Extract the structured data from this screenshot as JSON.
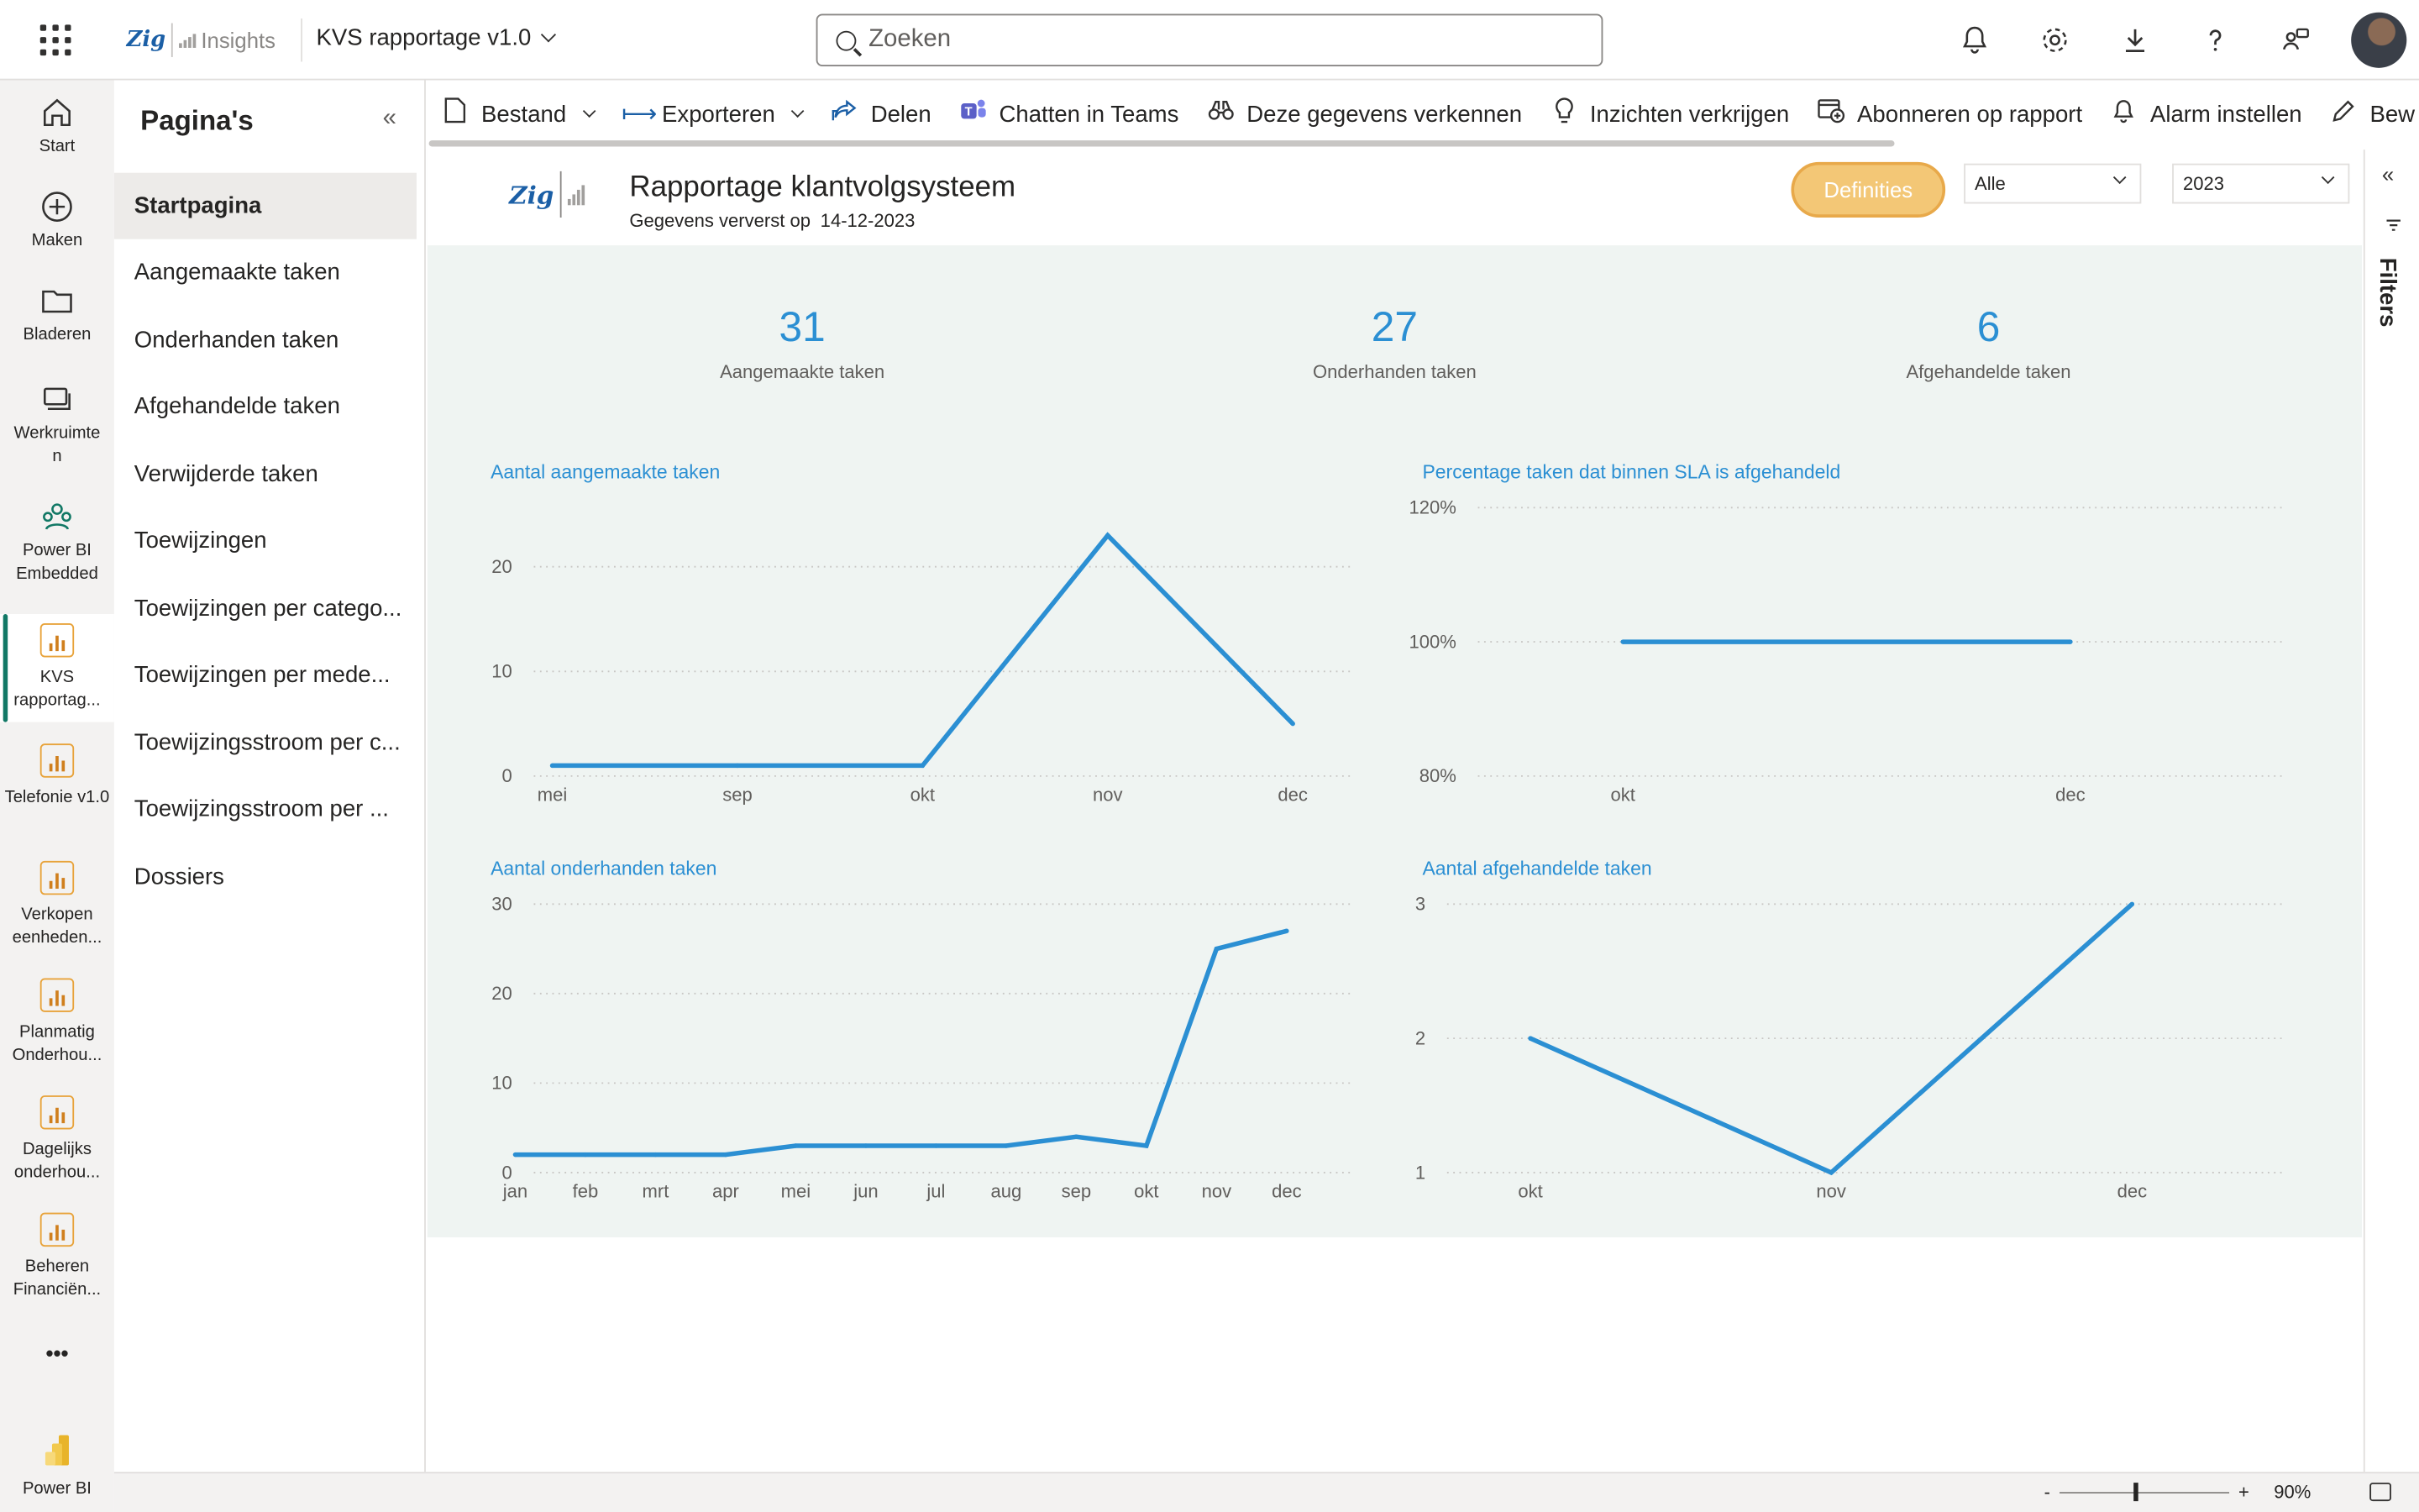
{
  "topbar": {
    "brand_insights": "Insights",
    "report_name": "KVS rapportage v1.0",
    "search_placeholder": "Zoeken"
  },
  "leftnav": {
    "items": [
      {
        "label": "Start",
        "icon": "home-icon"
      },
      {
        "label": "Maken",
        "icon": "plus-circle-icon"
      },
      {
        "label": "Bladeren",
        "icon": "folder-icon"
      },
      {
        "label": "Werkruimte\nn",
        "icon": "workspaces-icon"
      },
      {
        "label": "Power BI Embedded",
        "icon": "embedded-icon"
      },
      {
        "label": "KVS rapportag...",
        "icon": "report-icon"
      },
      {
        "label": "Telefonie v1.0",
        "icon": "report-icon"
      },
      {
        "label": "Verkopen eenheden...",
        "icon": "report-icon"
      },
      {
        "label": "Planmatig Onderhou...",
        "icon": "report-icon"
      },
      {
        "label": "Dagelijks onderhou...",
        "icon": "report-icon"
      },
      {
        "label": "Beheren Financiën...",
        "icon": "report-icon"
      }
    ],
    "more": "•••",
    "powerbi": "Power BI"
  },
  "pages": {
    "title": "Pagina's",
    "items": [
      "Startpagina",
      "Aangemaakte taken",
      "Onderhanden taken",
      "Afgehandelde taken",
      "Verwijderde taken",
      "Toewijzingen",
      "Toewijzingen per catego...",
      "Toewijzingen per mede...",
      "Toewijzingsstroom per c...",
      "Toewijzingsstroom per ...",
      "Dossiers"
    ]
  },
  "toolbar": {
    "items": [
      {
        "label": "Bestand",
        "icon": "file-icon",
        "dropdown": true
      },
      {
        "label": "Exporteren",
        "icon": "export-icon",
        "dropdown": true
      },
      {
        "label": "Delen",
        "icon": "share-icon"
      },
      {
        "label": "Chatten in Teams",
        "icon": "teams-icon"
      },
      {
        "label": "Deze gegevens verkennen",
        "icon": "binoculars-icon"
      },
      {
        "label": "Inzichten verkrijgen",
        "icon": "lightbulb-icon"
      },
      {
        "label": "Abonneren op rapport",
        "icon": "subscribe-icon"
      },
      {
        "label": "Alarm instellen",
        "icon": "bell-icon"
      },
      {
        "label": "Bew",
        "icon": "pencil-icon"
      }
    ]
  },
  "report": {
    "title": "Rapportage klantvolgsysteem",
    "refreshed_label": "Gegevens ververst op",
    "refreshed_date": "14-12-2023",
    "definities": "Definities",
    "slicer_1": "Alle",
    "slicer_2": "2023",
    "kpis": [
      {
        "value": "31",
        "label": "Aangemaakte taken"
      },
      {
        "value": "27",
        "label": "Onderhanden taken"
      },
      {
        "value": "6",
        "label": "Afgehandelde taken"
      }
    ],
    "line_color": "#2b8fd3"
  },
  "chart_data": [
    {
      "type": "line",
      "title": "Aantal aangemaakte taken",
      "categories": [
        "mei",
        "sep",
        "okt",
        "nov",
        "dec"
      ],
      "values": [
        1,
        1,
        1,
        23,
        5
      ],
      "yticks": [
        "0",
        "10",
        "20"
      ],
      "ylim": [
        0,
        23
      ]
    },
    {
      "type": "line",
      "title": "Percentage taken dat binnen SLA is afgehandeld",
      "categories": [
        "okt",
        "dec"
      ],
      "values": [
        100,
        100
      ],
      "yticks": [
        "80%",
        "100%",
        "120%"
      ],
      "ylim": [
        80,
        120
      ]
    },
    {
      "type": "line",
      "title": "Aantal onderhanden taken",
      "categories": [
        "jan",
        "feb",
        "mrt",
        "apr",
        "mei",
        "jun",
        "jul",
        "aug",
        "sep",
        "okt",
        "nov",
        "dec"
      ],
      "values": [
        2,
        2,
        2,
        2,
        3,
        3,
        3,
        3,
        4,
        3,
        25,
        27
      ],
      "yticks": [
        "0",
        "10",
        "20",
        "30"
      ],
      "ylim": [
        0,
        30
      ]
    },
    {
      "type": "line",
      "title": "Aantal afgehandelde taken",
      "categories": [
        "okt",
        "nov",
        "dec"
      ],
      "values": [
        2,
        1,
        3
      ],
      "yticks": [
        "1",
        "2",
        "3"
      ],
      "ylim": [
        1,
        3
      ]
    }
  ],
  "status": {
    "zoom_minus": "-",
    "zoom_plus": "+",
    "zoom": "90%"
  }
}
